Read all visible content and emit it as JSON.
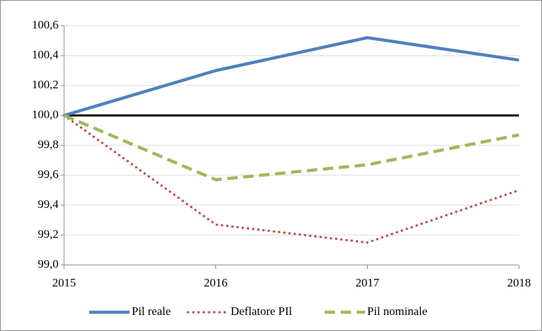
{
  "chart_data": {
    "type": "line",
    "x": [
      2015,
      2016,
      2017,
      2018
    ],
    "xlim": [
      2015,
      2018
    ],
    "xticks": [
      2015,
      2016,
      2017,
      2018
    ],
    "ylim": [
      99.0,
      100.6
    ],
    "yticks": [
      {
        "value": 99.0,
        "label": "99,0"
      },
      {
        "value": 99.2,
        "label": "99,2"
      },
      {
        "value": 99.4,
        "label": "99,4"
      },
      {
        "value": 99.6,
        "label": "99,6"
      },
      {
        "value": 99.8,
        "label": "99,8"
      },
      {
        "value": 100.0,
        "label": "100,0"
      },
      {
        "value": 100.2,
        "label": "100,2"
      },
      {
        "value": 100.4,
        "label": "100,4"
      },
      {
        "value": 100.6,
        "label": "100,6"
      }
    ],
    "grid": true,
    "reference_line": 100.0,
    "legend": "bottom",
    "series": [
      {
        "name": "Pil reale",
        "color": "#4f81bd",
        "style": "solid",
        "values": [
          100.0,
          100.3,
          100.52,
          100.37
        ]
      },
      {
        "name": "Deflatore PIl",
        "color": "#c0504d",
        "style": "dotted",
        "values": [
          100.0,
          99.27,
          99.15,
          99.5
        ]
      },
      {
        "name": "Pil nominale",
        "color": "#9bbb59",
        "style": "dashed",
        "values": [
          100.0,
          99.57,
          99.67,
          99.87
        ]
      }
    ]
  }
}
